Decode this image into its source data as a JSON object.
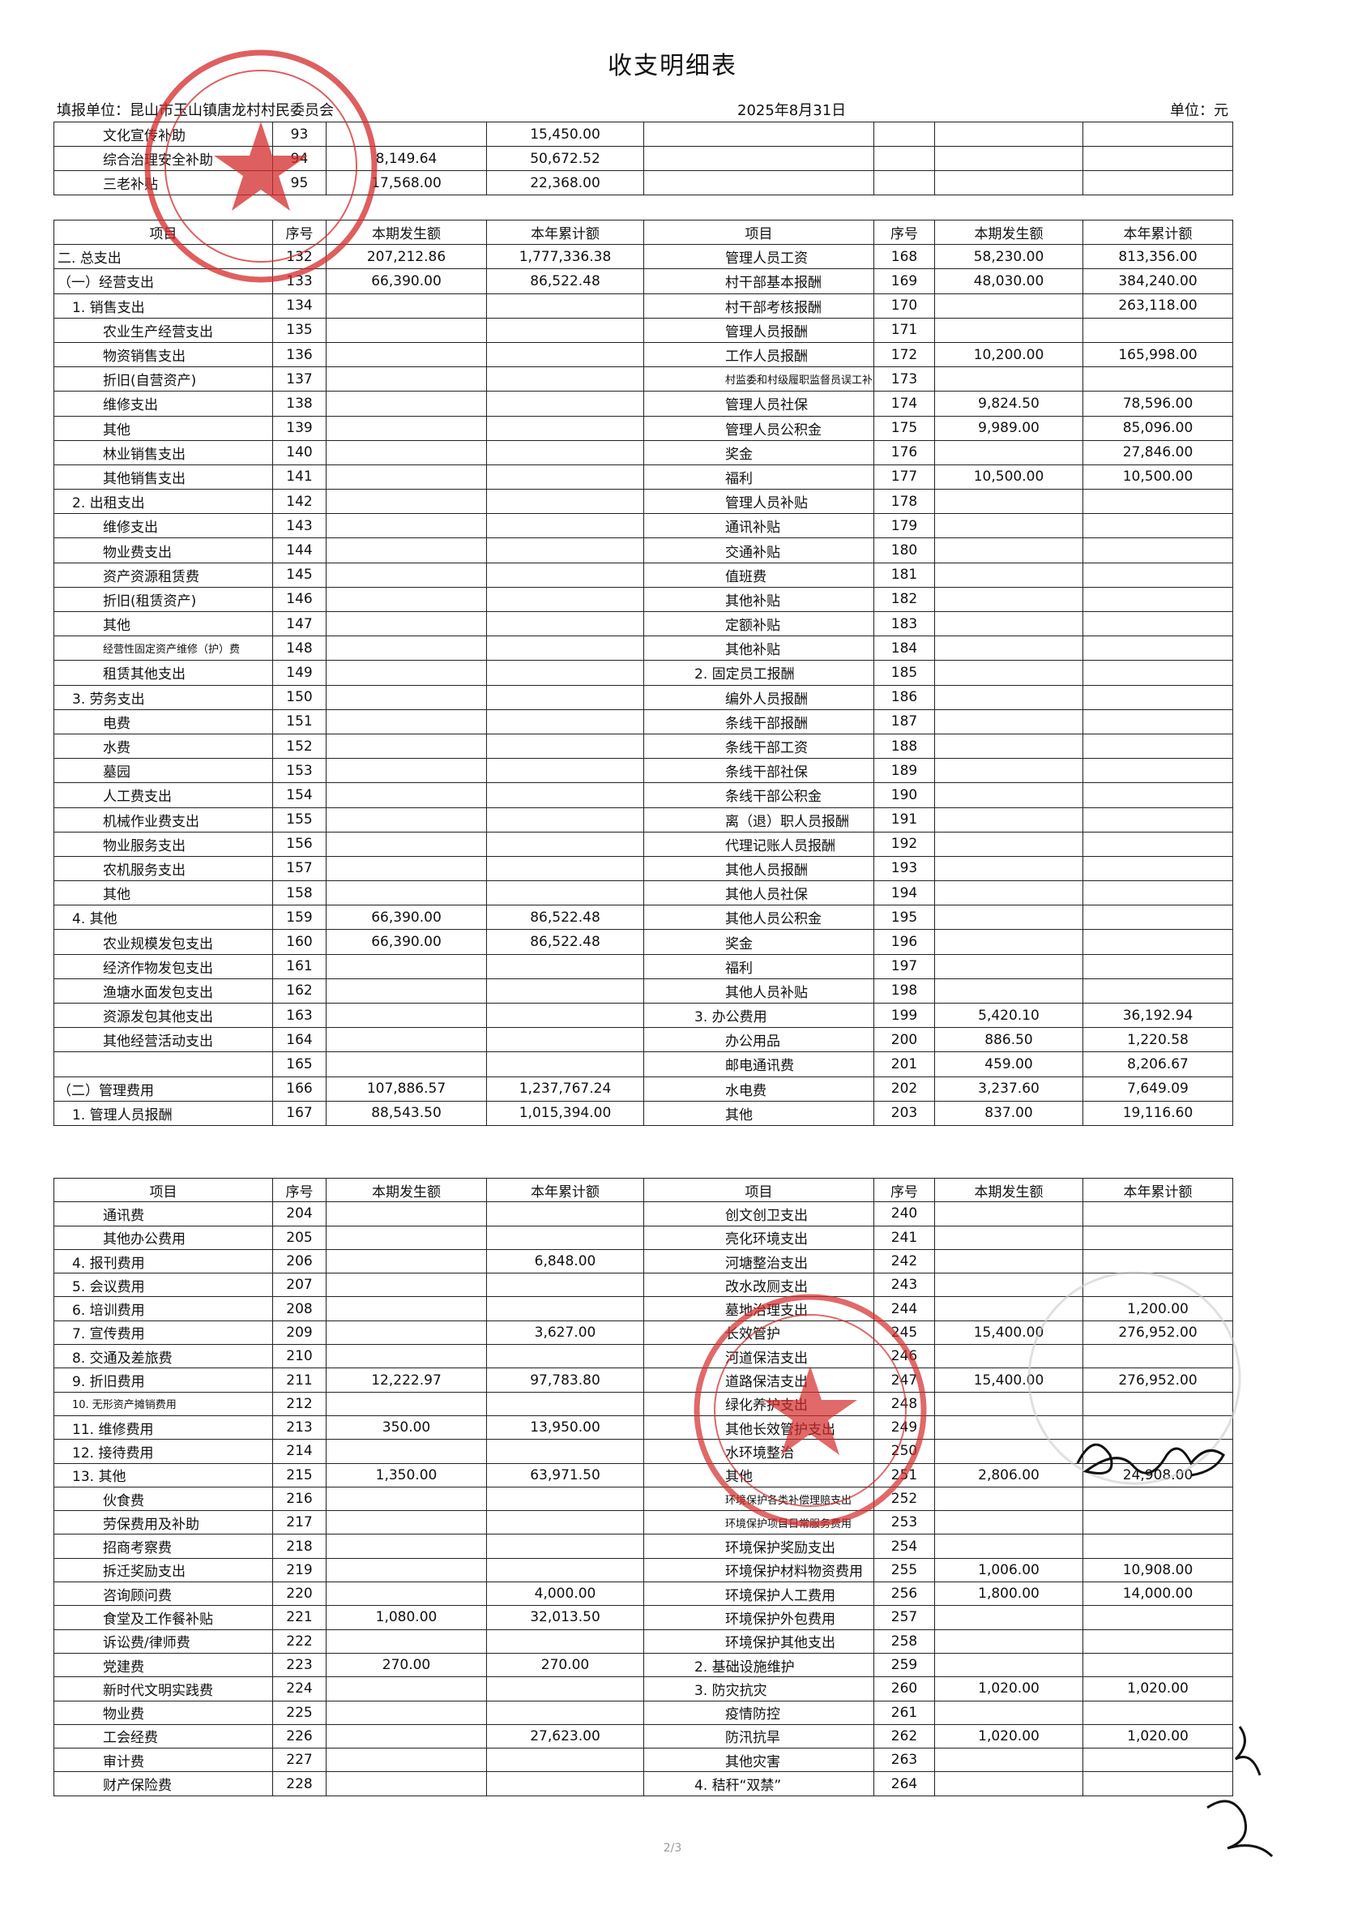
{
  "header": {
    "title": "收支明细表",
    "unit_name": "填报单位：昆山市玉山镇唐龙村村民委员会",
    "date": "2025年8月31日",
    "unit": "单位：元"
  },
  "table1": {
    "rows": [
      [
        "文化宣传补助",
        "93",
        null,
        "15,450.00",
        null,
        null,
        null,
        null
      ],
      [
        "综合治理安全补助",
        "94",
        "8,149.64",
        "50,672.52",
        null,
        null,
        null,
        null
      ],
      [
        "三老补贴",
        "95",
        "17,568.00",
        "22,368.00",
        null,
        null,
        null,
        null
      ]
    ]
  },
  "table2": {
    "header": [
      "项目",
      "序号",
      "本期发生额",
      "本年累计额",
      "项目",
      "序号",
      "本期发生额",
      "本年累计额"
    ],
    "rows": [
      [
        "二. 总支出",
        "132",
        "207,212.86",
        "1,777,336.38",
        "管理人员工资",
        "168",
        "58,230.00",
        "813,356.00"
      ],
      [
        "（一）经营支出",
        "133",
        "66,390.00",
        "86,522.48",
        "村干部基本报酬",
        "169",
        "48,030.00",
        "384,240.00"
      ],
      [
        "1. 销售支出",
        "134",
        null,
        null,
        "村干部考核报酬",
        "170",
        null,
        "263,118.00"
      ],
      [
        "农业生产经营支出",
        "135",
        null,
        null,
        "管理人员报酬",
        "171",
        null,
        null
      ],
      [
        "物资销售支出",
        "136",
        null,
        null,
        "工作人员报酬",
        "172",
        "10,200.00",
        "165,998.00"
      ],
      [
        "折旧(自营资产)",
        "137",
        null,
        null,
        "村监委和村级履职监督员误工补贴",
        "173",
        null,
        null
      ],
      [
        "维修支出",
        "138",
        null,
        null,
        "管理人员社保",
        "174",
        "9,824.50",
        "78,596.00"
      ],
      [
        "其他",
        "139",
        null,
        null,
        "管理人员公积金",
        "175",
        "9,989.00",
        "85,096.00"
      ],
      [
        "林业销售支出",
        "140",
        null,
        null,
        "奖金",
        "176",
        null,
        "27,846.00"
      ],
      [
        "其他销售支出",
        "141",
        null,
        null,
        "福利",
        "177",
        "10,500.00",
        "10,500.00"
      ],
      [
        "2. 出租支出",
        "142",
        null,
        null,
        "管理人员补贴",
        "178",
        null,
        null
      ],
      [
        "维修支出",
        "143",
        null,
        null,
        "通讯补贴",
        "179",
        null,
        null
      ],
      [
        "物业费支出",
        "144",
        null,
        null,
        "交通补贴",
        "180",
        null,
        null
      ],
      [
        "资产资源租赁费",
        "145",
        null,
        null,
        "值班费",
        "181",
        null,
        null
      ],
      [
        "折旧(租赁资产)",
        "146",
        null,
        null,
        "其他补贴",
        "182",
        null,
        null
      ],
      [
        "其他",
        "147",
        null,
        null,
        "定额补贴",
        "183",
        null,
        null
      ],
      [
        "经营性固定资产维修（护）费",
        "148",
        null,
        null,
        "其他补贴",
        "184",
        null,
        null
      ],
      [
        "租赁其他支出",
        "149",
        null,
        null,
        "2. 固定员工报酬",
        "185",
        null,
        null
      ],
      [
        "3. 劳务支出",
        "150",
        null,
        null,
        "编外人员报酬",
        "186",
        null,
        null
      ],
      [
        "电费",
        "151",
        null,
        null,
        "条线干部报酬",
        "187",
        null,
        null
      ],
      [
        "水费",
        "152",
        null,
        null,
        "条线干部工资",
        "188",
        null,
        null
      ],
      [
        "墓园",
        "153",
        null,
        null,
        "条线干部社保",
        "189",
        null,
        null
      ],
      [
        "人工费支出",
        "154",
        null,
        null,
        "条线干部公积金",
        "190",
        null,
        null
      ],
      [
        "机械作业费支出",
        "155",
        null,
        null,
        "离（退）职人员报酬",
        "191",
        null,
        null
      ],
      [
        "物业服务支出",
        "156",
        null,
        null,
        "代理记账人员报酬",
        "192",
        null,
        null
      ],
      [
        "农机服务支出",
        "157",
        null,
        null,
        "其他人员报酬",
        "193",
        null,
        null
      ],
      [
        "其他",
        "158",
        null,
        null,
        "其他人员社保",
        "194",
        null,
        null
      ],
      [
        "4. 其他",
        "159",
        "66,390.00",
        "86,522.48",
        "其他人员公积金",
        "195",
        null,
        null
      ],
      [
        "农业规模发包支出",
        "160",
        "66,390.00",
        "86,522.48",
        "奖金",
        "196",
        null,
        null
      ],
      [
        "经济作物发包支出",
        "161",
        null,
        null,
        "福利",
        "197",
        null,
        null
      ],
      [
        "渔塘水面发包支出",
        "162",
        null,
        null,
        "其他人员补贴",
        "198",
        null,
        null
      ],
      [
        "资源发包其他支出",
        "163",
        null,
        null,
        "3. 办公费用",
        "199",
        "5,420.10",
        "36,192.94"
      ],
      [
        "其他经营活动支出",
        "164",
        null,
        null,
        "办公用品",
        "200",
        "886.50",
        "1,220.58"
      ],
      [
        null,
        "165",
        null,
        null,
        "邮电通讯费",
        "201",
        "459.00",
        "8,206.67"
      ],
      [
        "（二）管理费用",
        "166",
        "107,886.57",
        "1,237,767.24",
        "水电费",
        "202",
        "3,237.60",
        "7,649.09"
      ],
      [
        "1. 管理人员报酬",
        "167",
        "88,543.50",
        "1,015,394.00",
        "其他",
        "203",
        "837.00",
        "19,116.60"
      ]
    ]
  },
  "table3": {
    "header": [
      "项目",
      "序号",
      "本期发生额",
      "本年累计额",
      "项目",
      "序号",
      "本期发生额",
      "本年累计额"
    ],
    "rows": [
      [
        "通讯费",
        "204",
        null,
        null,
        "创文创卫支出",
        "240",
        null,
        null
      ],
      [
        "其他办公费用",
        "205",
        null,
        null,
        "亮化环境支出",
        "241",
        null,
        null
      ],
      [
        "4. 报刊费用",
        "206",
        null,
        "6,848.00",
        "河塘整治支出",
        "242",
        null,
        null
      ],
      [
        "5. 会议费用",
        "207",
        null,
        null,
        "改水改厕支出",
        "243",
        null,
        null
      ],
      [
        "6. 培训费用",
        "208",
        null,
        null,
        "墓地治理支出",
        "244",
        null,
        "1,200.00"
      ],
      [
        "7. 宣传费用",
        "209",
        null,
        "3,627.00",
        "长效管护",
        "245",
        "15,400.00",
        "276,952.00"
      ],
      [
        "8. 交通及差旅费",
        "210",
        null,
        null,
        "河道保洁支出",
        "246",
        null,
        null
      ],
      [
        "9. 折旧费用",
        "211",
        "12,222.97",
        "97,783.80",
        "道路保洁支出",
        "247",
        "15,400.00",
        "276,952.00"
      ],
      [
        "10. 无形资产摊销费用",
        "212",
        null,
        null,
        "绿化养护支出",
        "248",
        null,
        null
      ],
      [
        "11. 维修费用",
        "213",
        "350.00",
        "13,950.00",
        "其他长效管护支出",
        "249",
        null,
        null
      ],
      [
        "12. 接待费用",
        "214",
        null,
        null,
        "水环境整治",
        "250",
        null,
        null
      ],
      [
        "13. 其他",
        "215",
        "1,350.00",
        "63,971.50",
        "其他",
        "251",
        "2,806.00",
        "24,908.00"
      ],
      [
        "伙食费",
        "216",
        null,
        null,
        "环境保护各类补偿理赔支出",
        "252",
        null,
        null
      ],
      [
        "劳保费用及补助",
        "217",
        null,
        null,
        "环境保护项目日常服务费用",
        "253",
        null,
        null
      ],
      [
        "招商考察费",
        "218",
        null,
        null,
        "环境保护奖励支出",
        "254",
        null,
        null
      ],
      [
        "拆迁奖励支出",
        "219",
        null,
        null,
        "环境保护材料物资费用",
        "255",
        "1,006.00",
        "10,908.00"
      ],
      [
        "咨询顾问费",
        "220",
        null,
        "4,000.00",
        "环境保护人工费用",
        "256",
        "1,800.00",
        "14,000.00"
      ],
      [
        "食堂及工作餐补贴",
        "221",
        "1,080.00",
        "32,013.50",
        "环境保护外包费用",
        "257",
        null,
        null
      ],
      [
        "诉讼费/律师费",
        "222",
        null,
        null,
        "环境保护其他支出",
        "258",
        null,
        null
      ],
      [
        "党建费",
        "223",
        "270.00",
        "270.00",
        "2. 基础设施维护",
        "259",
        null,
        null
      ],
      [
        "新时代文明实践费",
        "224",
        null,
        null,
        "3. 防灾抗灾",
        "260",
        "1,020.00",
        "1,020.00"
      ],
      [
        "物业费",
        "225",
        null,
        null,
        "疫情防控",
        "261",
        null,
        null
      ],
      [
        "工会经费",
        "226",
        null,
        "27,623.00",
        "防汛抗旱",
        "262",
        "1,020.00",
        "1,020.00"
      ],
      [
        "审计费",
        "227",
        null,
        null,
        "其他灾害",
        "263",
        null,
        null
      ],
      [
        "财产保险费",
        "228",
        null,
        null,
        "4. 秸秆“双禁”",
        "264",
        null,
        null
      ]
    ]
  },
  "footer": {
    "page": "2/3"
  }
}
